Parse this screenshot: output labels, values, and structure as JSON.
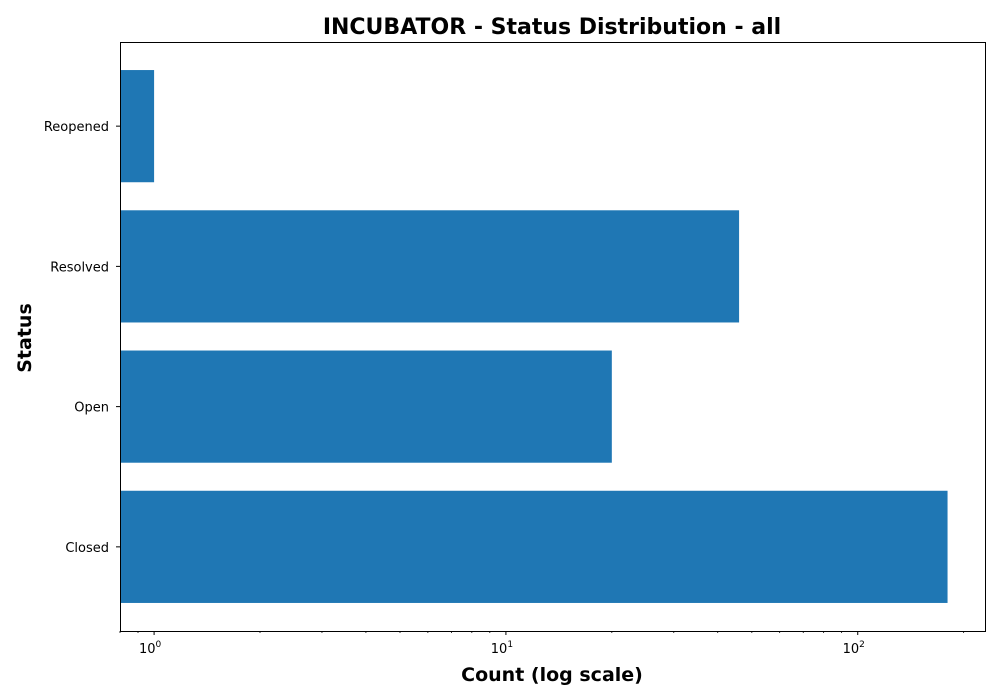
{
  "chart_data": {
    "type": "bar",
    "orientation": "horizontal",
    "title": "INCUBATOR - Status Distribution - all",
    "xlabel": "Count (log scale)",
    "ylabel": "Status",
    "x_scale": "log",
    "xlim": [
      0.8,
      230
    ],
    "x_ticks": [
      {
        "value": 1,
        "base": "10",
        "exp": "0"
      },
      {
        "value": 10,
        "base": "10",
        "exp": "1"
      },
      {
        "value": 100,
        "base": "10",
        "exp": "2"
      }
    ],
    "categories": [
      "Closed",
      "Open",
      "Resolved",
      "Reopened"
    ],
    "values": [
      180,
      20,
      46,
      1
    ],
    "bar_color": "#1f77b4",
    "grid": false,
    "legend": "none"
  }
}
